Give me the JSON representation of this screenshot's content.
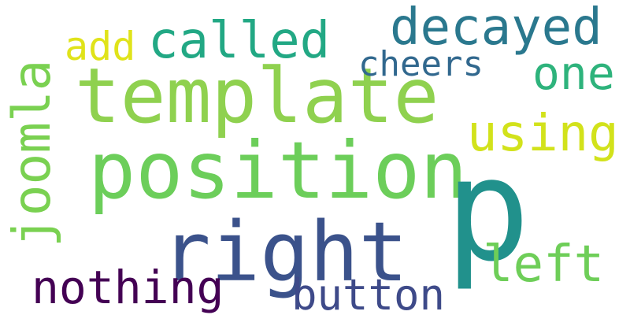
{
  "words": {
    "template": {
      "text": "template",
      "color": "#8fd14f"
    },
    "position": {
      "text": "position",
      "color": "#6cce5a"
    },
    "right": {
      "text": "right",
      "color": "#3b528b"
    },
    "p": {
      "text": "p",
      "color": "#21918c"
    },
    "decayed": {
      "text": "decayed",
      "color": "#2a788e"
    },
    "called": {
      "text": "called",
      "color": "#22a884"
    },
    "add": {
      "text": "add",
      "color": "#e0e31a"
    },
    "cheers": {
      "text": "cheers",
      "color": "#31688e"
    },
    "one": {
      "text": "one",
      "color": "#2eb37c"
    },
    "using": {
      "text": "using",
      "color": "#d2e21b"
    },
    "joomla": {
      "text": "joomla",
      "color": "#7ad151"
    },
    "left": {
      "text": "left",
      "color": "#6ece58"
    },
    "nothing": {
      "text": "nothing",
      "color": "#440154"
    },
    "button": {
      "text": "button",
      "color": "#3e4a89"
    }
  }
}
